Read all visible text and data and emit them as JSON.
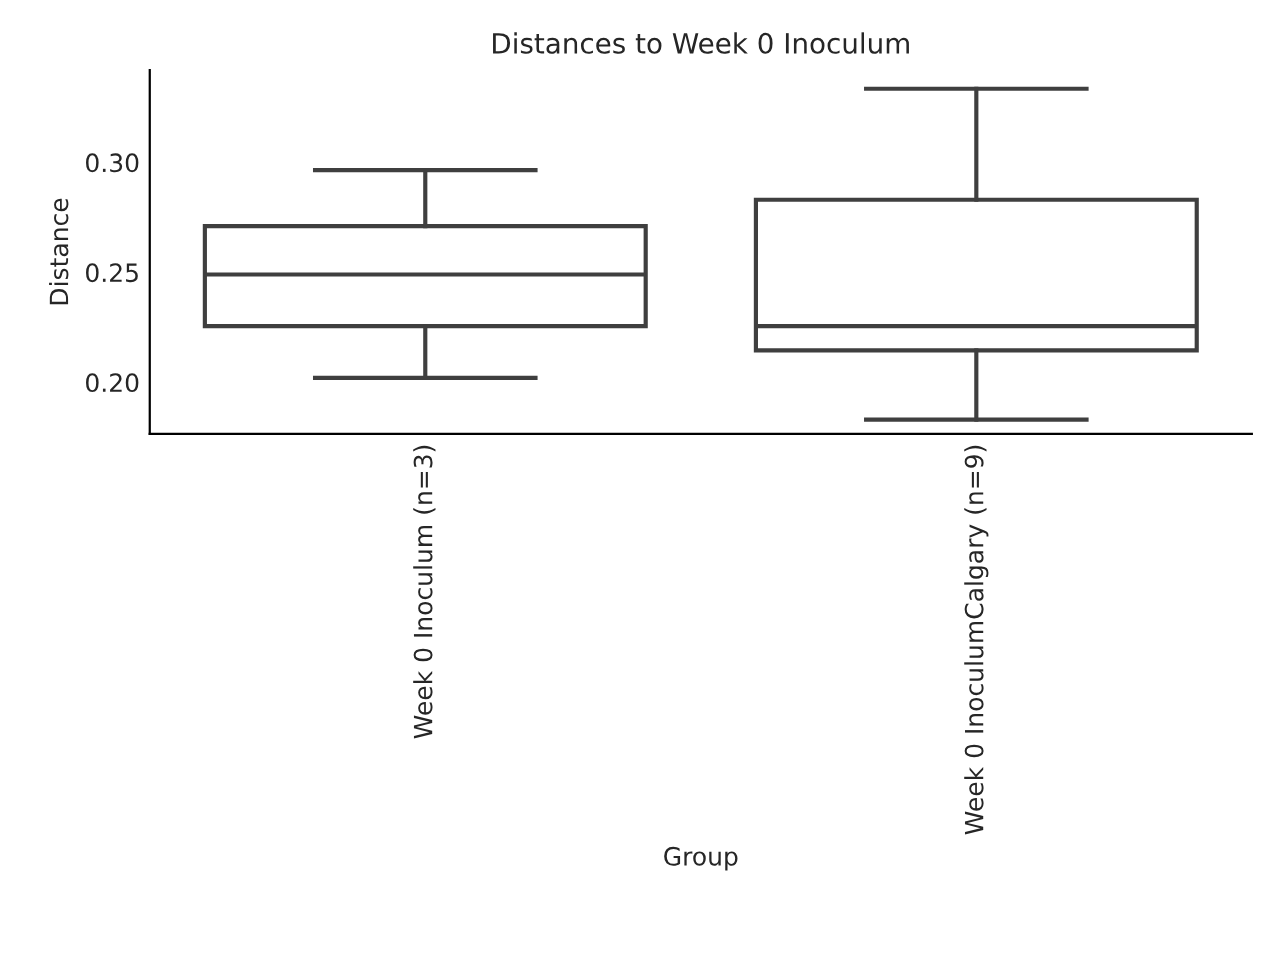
{
  "chart_data": {
    "type": "box",
    "title": "Distances to Week 0 Inoculum",
    "xlabel": "Group",
    "ylabel": "Distance",
    "categories": [
      "Week 0 Inoculum (n=3)",
      "Week 0 InoculumCalgary (n=9)"
    ],
    "boxes": [
      {
        "low": 0.202,
        "q1": 0.2255,
        "median": 0.249,
        "q3": 0.271,
        "high": 0.2965
      },
      {
        "low": 0.183,
        "q1": 0.2145,
        "median": 0.2255,
        "q3": 0.283,
        "high": 0.3335
      }
    ],
    "color": "#3f3f3f",
    "ylim": [
      0.1765,
      0.342
    ],
    "yticks": [
      {
        "value": 0.2,
        "label": "0.20"
      },
      {
        "value": 0.25,
        "label": "0.25"
      },
      {
        "value": 0.3,
        "label": "0.30"
      }
    ]
  }
}
